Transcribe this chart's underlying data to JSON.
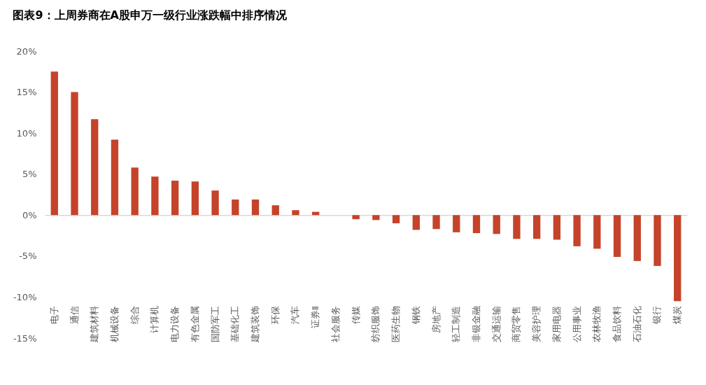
{
  "chart_data": {
    "type": "bar",
    "title": "图表9：上周券商在A股申万一级行业涨跌幅中排序情况",
    "categories": [
      "电子",
      "通信",
      "建筑材料",
      "机械设备",
      "综合",
      "计算机",
      "电力设备",
      "有色金属",
      "国防军工",
      "基础化工",
      "建筑装饰",
      "环保",
      "汽车",
      "证券Ⅱ",
      "社会服务",
      "传媒",
      "纺织服饰",
      "医药生物",
      "钢铁",
      "房地产",
      "轻工制造",
      "非银金融",
      "交通运输",
      "商贸零售",
      "美容护理",
      "家用电器",
      "公用事业",
      "农林牧渔",
      "食品饮料",
      "石油石化",
      "银行",
      "煤炭"
    ],
    "values": [
      17.5,
      15.0,
      11.7,
      9.2,
      5.8,
      4.7,
      4.2,
      4.1,
      3.0,
      1.9,
      1.9,
      1.2,
      0.6,
      0.4,
      0.0,
      -0.5,
      -0.6,
      -1.0,
      -1.8,
      -1.7,
      -2.1,
      -2.2,
      -2.3,
      -2.9,
      -2.9,
      -3.0,
      -3.8,
      -4.1,
      -5.1,
      -5.6,
      -6.2,
      -10.5
    ],
    "color": "#c5432a",
    "ylim": [
      -15,
      20
    ],
    "yticks": [
      {
        "value": -15,
        "label": "-15%"
      },
      {
        "value": -10,
        "label": "-10%"
      },
      {
        "value": -5,
        "label": "-5%"
      },
      {
        "value": 0,
        "label": "0%"
      },
      {
        "value": 5,
        "label": "5%"
      },
      {
        "value": 10,
        "label": "10%"
      },
      {
        "value": 15,
        "label": "15%"
      },
      {
        "value": 20,
        "label": "20%"
      }
    ]
  }
}
